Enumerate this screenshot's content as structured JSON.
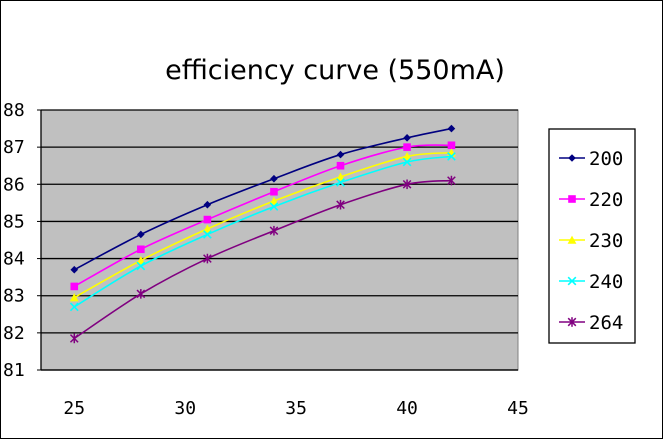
{
  "chart_data": {
    "type": "line",
    "title": "efficiency curve (550mA)",
    "xlabel": "",
    "ylabel": "",
    "x": [
      25,
      28,
      31,
      34,
      37,
      40,
      42
    ],
    "xlim": [
      23.5,
      45
    ],
    "ylim": [
      81,
      88
    ],
    "x_ticks": [
      25,
      30,
      35,
      40,
      45
    ],
    "y_ticks": [
      81,
      82,
      83,
      84,
      85,
      86,
      87,
      88
    ],
    "grid": "horizontal",
    "plot_background": "#c0c0c0",
    "legend_position": "right",
    "series": [
      {
        "name": "200",
        "color": "#000080",
        "marker": "diamond",
        "values": [
          83.7,
          84.65,
          85.45,
          86.15,
          86.8,
          87.25,
          87.5
        ]
      },
      {
        "name": "220",
        "color": "#ff00ff",
        "marker": "square",
        "values": [
          83.25,
          84.25,
          85.05,
          85.8,
          86.5,
          87.0,
          87.05
        ]
      },
      {
        "name": "230",
        "color": "#ffff00",
        "marker": "triangle",
        "values": [
          82.95,
          83.95,
          84.8,
          85.55,
          86.2,
          86.75,
          86.85
        ]
      },
      {
        "name": "240",
        "color": "#00ffff",
        "marker": "x",
        "values": [
          82.7,
          83.8,
          84.65,
          85.4,
          86.05,
          86.6,
          86.75
        ]
      },
      {
        "name": "264",
        "color": "#800080",
        "marker": "star",
        "values": [
          81.85,
          83.05,
          84.0,
          84.75,
          85.45,
          86.0,
          86.1
        ]
      }
    ]
  }
}
